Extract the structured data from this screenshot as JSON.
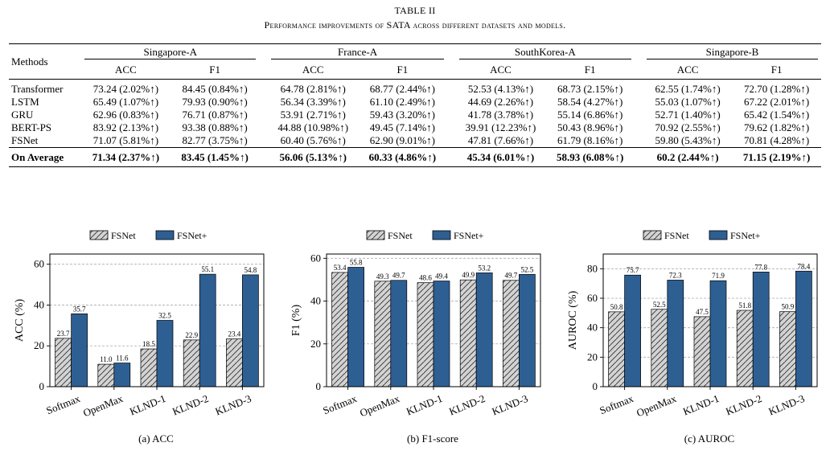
{
  "table": {
    "title": "TABLE II",
    "subtitle": "Performance improvements of SATA across different datasets and models.",
    "methods_header": "Methods",
    "datasets": [
      "Singapore-A",
      "France-A",
      "SouthKorea-A",
      "Singapore-B"
    ],
    "metrics": [
      "ACC",
      "F1"
    ],
    "rows": [
      {
        "method": "Transformer",
        "cells": [
          "73.24 (2.02%↑)",
          "84.45 (0.84%↑)",
          "64.78 (2.81%↑)",
          "68.77 (2.44%↑)",
          "52.53 (4.13%↑)",
          "68.73 (2.15%↑)",
          "62.55 (1.74%↑)",
          "72.70 (1.28%↑)"
        ]
      },
      {
        "method": "LSTM",
        "cells": [
          "65.49 (1.07%↑)",
          "79.93 (0.90%↑)",
          "56.34 (3.39%↑)",
          "61.10 (2.49%↑)",
          "44.69 (2.26%↑)",
          "58.54 (4.27%↑)",
          "55.03 (1.07%↑)",
          "67.22 (2.01%↑)"
        ]
      },
      {
        "method": "GRU",
        "cells": [
          "62.96 (0.83%↑)",
          "76.71 (0.87%↑)",
          "53.91 (2.71%↑)",
          "59.43 (3.20%↑)",
          "41.78 (3.78%↑)",
          "55.14 (6.86%↑)",
          "52.71 (1.40%↑)",
          "65.42 (1.54%↑)"
        ]
      },
      {
        "method": "BERT-PS",
        "cells": [
          "83.92 (2.13%↑)",
          "93.38 (0.88%↑)",
          "44.88 (10.98%↑)",
          "49.45 (7.14%↑)",
          "39.91 (12.23%↑)",
          "50.43 (8.96%↑)",
          "70.92 (2.55%↑)",
          "79.62 (1.82%↑)"
        ]
      },
      {
        "method": "FSNet",
        "cells": [
          "71.07 (5.81%↑)",
          "82.77 (3.75%↑)",
          "60.40 (5.76%↑)",
          "62.90 (9.01%↑)",
          "47.81 (7.66%↑)",
          "61.79 (8.16%↑)",
          "59.80 (5.43%↑)",
          "70.81 (4.28%↑)"
        ]
      }
    ],
    "average": {
      "method": "On Average",
      "cells": [
        "71.34 (2.37%↑)",
        "83.45 (1.45%↑)",
        "56.06 (5.13%↑)",
        "60.33 (4.86%↑)",
        "45.34 (6.01%↑)",
        "58.93 (6.08%↑)",
        "60.2 (2.44%↑)",
        "71.15 (2.19%↑)"
      ]
    }
  },
  "legend": [
    "FSNet",
    "FSNet+"
  ],
  "colors": {
    "fsnet_plus": "#2e5f93",
    "fsnet": "#d3d3d3"
  },
  "chart_data": [
    {
      "type": "bar",
      "caption": "(a) ACC",
      "ylabel": "ACC (%)",
      "ylim": [
        0,
        65
      ],
      "yticks": [
        0,
        20,
        40,
        60
      ],
      "categories": [
        "Softmax",
        "OpenMax",
        "KLND-1",
        "KLND-2",
        "KLND-3"
      ],
      "series": [
        {
          "name": "FSNet",
          "values": [
            23.7,
            11.0,
            18.5,
            22.9,
            23.4
          ],
          "labels": [
            "23.7",
            "11.0",
            "18.5",
            "22.9",
            "23.4"
          ]
        },
        {
          "name": "FSNet+",
          "values": [
            35.7,
            11.6,
            32.5,
            55.1,
            54.8
          ],
          "labels": [
            "35.7",
            "11.6",
            "32.5",
            "55.1",
            "54.8"
          ]
        }
      ],
      "grid": true,
      "legend": "top"
    },
    {
      "type": "bar",
      "caption": "(b) F1-score",
      "ylabel": "F1 (%)",
      "ylim": [
        0,
        62
      ],
      "yticks": [
        0,
        20,
        40,
        60
      ],
      "categories": [
        "Softmax",
        "OpenMax",
        "KLND-1",
        "KLND-2",
        "KLND-3"
      ],
      "series": [
        {
          "name": "FSNet",
          "values": [
            53.4,
            49.3,
            48.6,
            49.9,
            49.7
          ],
          "labels": [
            "53.4",
            "49.3",
            "48.6",
            "49.9",
            "49.7"
          ]
        },
        {
          "name": "FSNet+",
          "values": [
            55.8,
            49.7,
            49.4,
            53.2,
            52.5
          ],
          "labels": [
            "55.8",
            "49.7",
            "49.4",
            "53.2",
            "52.5"
          ]
        }
      ],
      "grid": true,
      "legend": "top"
    },
    {
      "type": "bar",
      "caption": "(c) AUROC",
      "ylabel": "AUROC (%)",
      "ylim": [
        0,
        90
      ],
      "yticks": [
        0,
        20,
        40,
        60,
        80
      ],
      "categories": [
        "Softmax",
        "OpenMax",
        "KLND-1",
        "KLND-2",
        "KLND-3"
      ],
      "series": [
        {
          "name": "FSNet",
          "values": [
            50.8,
            52.5,
            47.5,
            51.8,
            50.9
          ],
          "labels": [
            "50.8",
            "52.5",
            "47.5",
            "51.8",
            "50.9"
          ]
        },
        {
          "name": "FSNet+",
          "values": [
            75.7,
            72.3,
            71.9,
            77.8,
            78.4
          ],
          "labels": [
            "75.7",
            "72.3",
            "71.9",
            "77.8",
            "78.4"
          ]
        }
      ],
      "grid": true,
      "legend": "top"
    }
  ]
}
